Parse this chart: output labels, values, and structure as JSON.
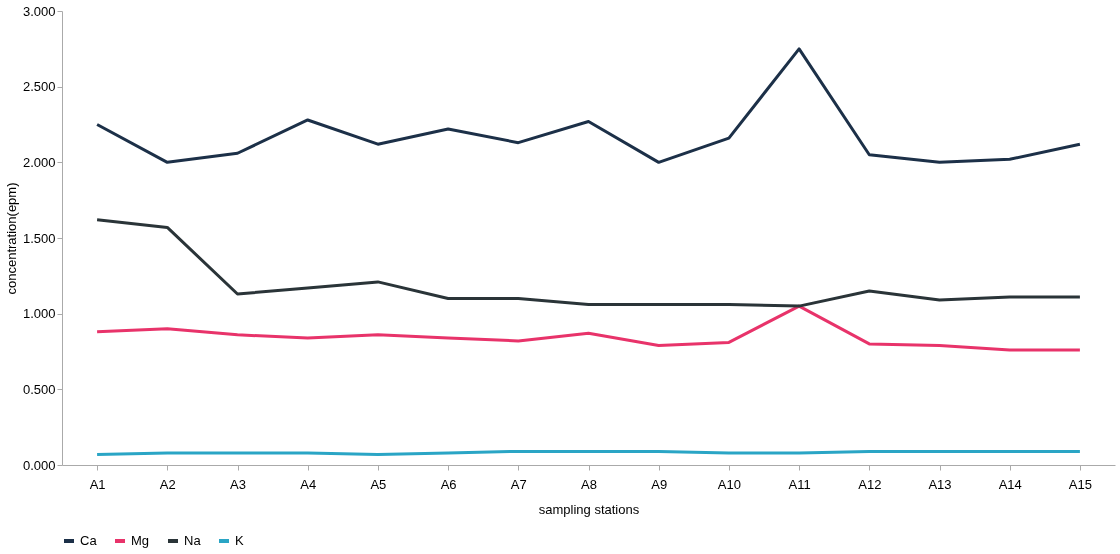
{
  "chart_data": {
    "type": "line",
    "xlabel": "sampling stations",
    "ylabel": "concentration(epm)",
    "categories": [
      "A1",
      "A2",
      "A3",
      "A4",
      "A5",
      "A6",
      "A7",
      "A8",
      "A9",
      "A10",
      "A11",
      "A12",
      "A13",
      "A14",
      "A15"
    ],
    "series": [
      {
        "name": "Ca",
        "color": "#1c3048",
        "values": [
          2.25,
          2.0,
          2.06,
          2.28,
          2.12,
          2.22,
          2.13,
          2.27,
          2.0,
          2.16,
          2.75,
          2.05,
          2.0,
          2.02,
          2.12
        ]
      },
      {
        "name": "Mg",
        "color": "#e8336a",
        "values": [
          0.88,
          0.9,
          0.86,
          0.84,
          0.86,
          0.84,
          0.82,
          0.87,
          0.79,
          0.81,
          1.05,
          0.8,
          0.79,
          0.76,
          0.76
        ]
      },
      {
        "name": "Na",
        "color": "#2a3438",
        "values": [
          1.62,
          1.57,
          1.13,
          1.17,
          1.21,
          1.1,
          1.1,
          1.06,
          1.06,
          1.06,
          1.05,
          1.15,
          1.09,
          1.11,
          1.11
        ]
      },
      {
        "name": "K",
        "color": "#2aa5c5",
        "values": [
          0.07,
          0.08,
          0.08,
          0.08,
          0.07,
          0.08,
          0.09,
          0.09,
          0.09,
          0.08,
          0.08,
          0.09,
          0.09,
          0.09,
          0.09
        ]
      }
    ],
    "ylim": [
      0,
      3
    ],
    "yticks": [
      {
        "value": 0,
        "label": "0.000"
      },
      {
        "value": 0.5,
        "label": "0.500"
      },
      {
        "value": 1,
        "label": "1.000"
      },
      {
        "value": 1.5,
        "label": "1.500"
      },
      {
        "value": 2,
        "label": "2.000"
      },
      {
        "value": 2.5,
        "label": "2.500"
      },
      {
        "value": 3,
        "label": "3.000"
      }
    ],
    "grid": false,
    "legend": "bottom",
    "marker": "none",
    "line_style": "solid"
  }
}
